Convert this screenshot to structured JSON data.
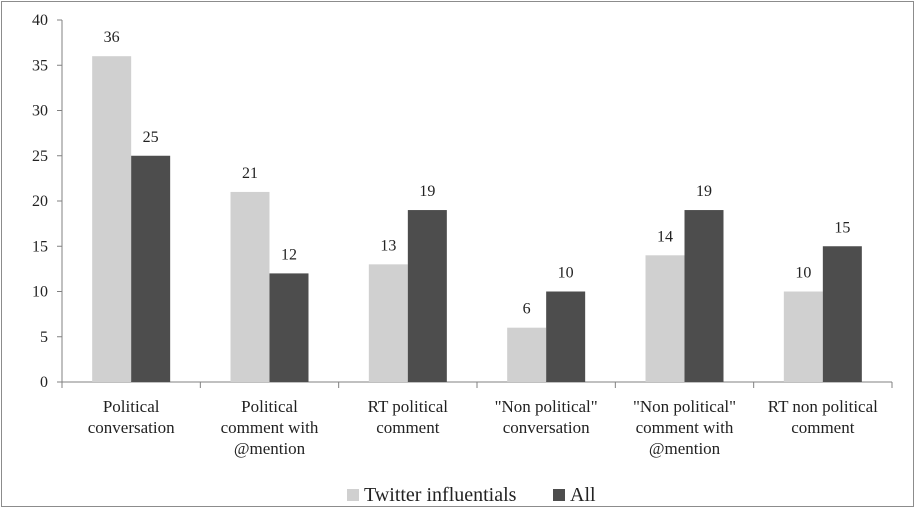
{
  "chart_data": {
    "type": "bar",
    "title": "",
    "xlabel": "",
    "ylabel": "",
    "ylim": [
      0,
      40
    ],
    "yticks": [
      0,
      5,
      10,
      15,
      20,
      25,
      30,
      35,
      40
    ],
    "grid": false,
    "legend_position": "bottom",
    "categories": [
      [
        "Political",
        "conversation"
      ],
      [
        "Political",
        "comment with",
        "@mention"
      ],
      [
        "RT political",
        "comment"
      ],
      [
        "\"Non political\"",
        "conversation"
      ],
      [
        "\"Non political\"",
        "comment with",
        "@mention"
      ],
      [
        "RT non political",
        "comment"
      ]
    ],
    "series": [
      {
        "name": "Twitter influentials",
        "color": "#d0d0d0",
        "values": [
          36,
          21,
          13,
          6,
          14,
          10
        ]
      },
      {
        "name": "All",
        "color": "#4d4d4d",
        "values": [
          25,
          12,
          19,
          10,
          19,
          15
        ]
      }
    ]
  }
}
